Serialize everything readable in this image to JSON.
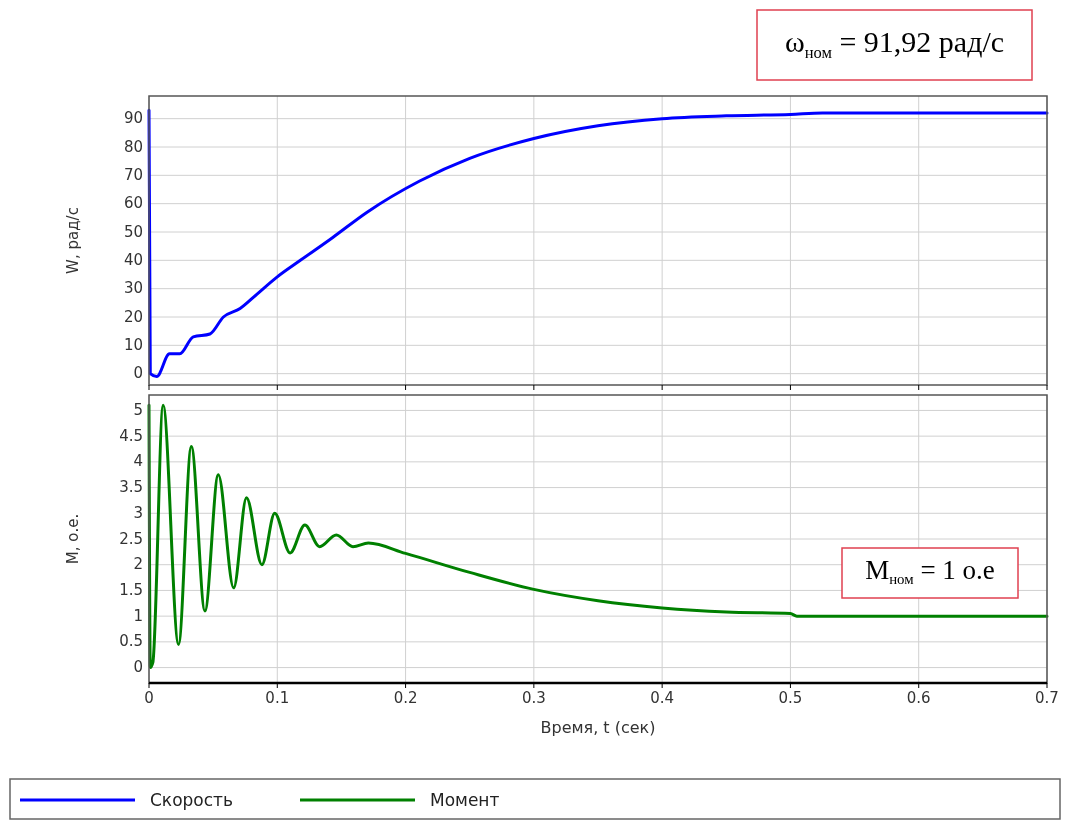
{
  "chart_data": [
    {
      "type": "line",
      "ylabel": "W, рад/с",
      "xlim": [
        0,
        0.7
      ],
      "xticks": [
        0,
        0.1,
        0.2,
        0.3,
        0.4,
        0.5,
        0.6,
        0.7
      ],
      "ylim": [
        -4,
        98
      ],
      "yticks": [
        0,
        10,
        20,
        30,
        40,
        50,
        60,
        70,
        80,
        90
      ],
      "grid": true,
      "legend": "bottom",
      "tick_labels": "y",
      "annotations": [
        "ω$_{ном}$ = 91,92 рад/с"
      ],
      "series": [
        {
          "name": "Скорость",
          "color": "#0000ff",
          "x": [
            0,
            0.001,
            0.006,
            0.016,
            0.024,
            0.0345,
            0.0475,
            0.058,
            0.071,
            0.084,
            0.0995,
            0.118,
            0.143,
            0.17,
            0.211,
            0.25,
            0.3,
            0.35,
            0.4,
            0.45,
            0.5,
            0.525,
            0.7
          ],
          "values": [
            93,
            0,
            -1,
            7,
            7,
            13,
            14,
            20,
            23,
            28,
            34,
            40,
            48,
            57,
            68,
            76,
            83,
            87.5,
            90,
            91,
            91.5,
            92,
            92
          ]
        }
      ]
    },
    {
      "type": "line",
      "xlabel": "Время, t (сек)",
      "ylabel": "M, о.е.",
      "xlim": [
        0,
        0.7
      ],
      "xticks": [
        0,
        0.1,
        0.2,
        0.3,
        0.4,
        0.5,
        0.6,
        0.7
      ],
      "ylim": [
        -0.3,
        5.3
      ],
      "yticks": [
        0,
        0.5,
        1,
        1.5,
        2,
        2.5,
        3,
        3.5,
        4,
        4.5,
        5
      ],
      "grid": true,
      "legend": "bottom",
      "annotations": [
        "M$_{ном}$ = 1 о.е"
      ],
      "series": [
        {
          "name": "Момент",
          "color": "#008000",
          "x": [
            0,
            0.001,
            0.003,
            0.011,
            0.023,
            0.033,
            0.0436,
            0.054,
            0.066,
            0.076,
            0.088,
            0.098,
            0.11,
            0.1215,
            0.133,
            0.146,
            0.159,
            0.171,
            0.2,
            0.25,
            0.3,
            0.35,
            0.4,
            0.45,
            0.5,
            0.505,
            0.7
          ],
          "values": [
            5.1,
            0,
            0.1,
            5.1,
            0.45,
            4.3,
            1.1,
            3.75,
            1.55,
            3.3,
            2,
            3,
            2.23,
            2.77,
            2.35,
            2.58,
            2.35,
            2.42,
            2.22,
            1.85,
            1.52,
            1.3,
            1.16,
            1.08,
            1.05,
            1,
            1
          ]
        }
      ]
    }
  ]
}
